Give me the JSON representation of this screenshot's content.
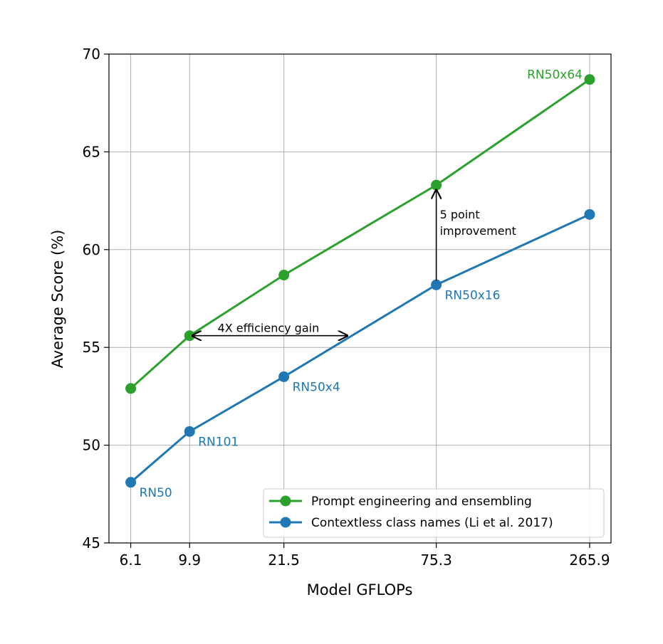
{
  "chart_data": {
    "type": "line",
    "title": "",
    "xlabel": "Model GFLOPs",
    "ylabel": "Average Score (%)",
    "xscale": "log",
    "xlim": [
      5.1,
      317
    ],
    "ylim": [
      45,
      70
    ],
    "grid": true,
    "x": [
      6.1,
      9.9,
      21.5,
      75.3,
      265.9
    ],
    "xtick_labels": [
      "6.1",
      "9.9",
      "21.5",
      "75.3",
      "265.9"
    ],
    "yticks": [
      45,
      50,
      55,
      60,
      65,
      70
    ],
    "ytick_labels": [
      "45",
      "50",
      "55",
      "60",
      "65",
      "70"
    ],
    "legend_position": "lower-right",
    "series": [
      {
        "name": "Prompt engineering and ensembling",
        "color": "#2ca02c",
        "values": [
          52.9,
          55.6,
          58.7,
          63.3,
          68.7
        ],
        "point_labels": [
          "",
          "",
          "",
          "",
          "RN50x64"
        ]
      },
      {
        "name": "Contextless class names (Li et al. 2017)",
        "color": "#1f77b4",
        "values": [
          48.1,
          50.7,
          53.5,
          58.2,
          61.8
        ],
        "point_labels": [
          "RN50",
          "RN101",
          "RN50x4",
          "RN50x16",
          ""
        ]
      }
    ],
    "annotations": [
      {
        "text": "4X efficiency gain",
        "type": "double-arrow",
        "from": [
          9.9,
          55.6
        ],
        "to": [
          36.2,
          55.6
        ]
      },
      {
        "text_lines": [
          "5 point",
          "improvement"
        ],
        "type": "arrow",
        "from": [
          75.3,
          58.2
        ],
        "to": [
          75.3,
          63.3
        ]
      }
    ]
  }
}
